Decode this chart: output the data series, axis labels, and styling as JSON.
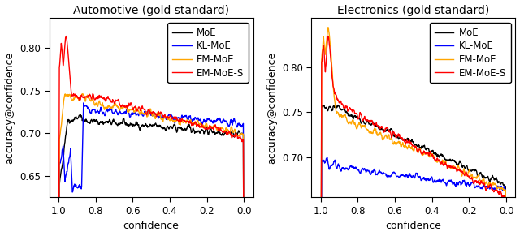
{
  "title_left": "Automotive (gold standard)",
  "title_right": "Electronics (gold standard)",
  "xlabel": "confidence",
  "ylabel": "accuracy@confidence",
  "legend_labels": [
    "MoE",
    "KL-MoE",
    "EM-MoE",
    "EM-MoE-S"
  ],
  "colors": [
    "black",
    "blue",
    "orange",
    "red"
  ],
  "xlim": [
    1.05,
    -0.05
  ],
  "ylim_left": [
    0.625,
    0.835
  ],
  "ylim_right": [
    0.655,
    0.855
  ],
  "xticks": [
    1.0,
    0.8,
    0.6,
    0.4,
    0.2,
    0.0
  ],
  "yticks_left": [
    0.65,
    0.7,
    0.75,
    0.8
  ],
  "yticks_right": [
    0.7,
    0.75,
    0.8
  ],
  "background_color": "#ffffff",
  "title_fontsize": 10,
  "axis_fontsize": 9,
  "tick_fontsize": 8.5,
  "legend_fontsize": 8.5,
  "linewidth": 1.0
}
